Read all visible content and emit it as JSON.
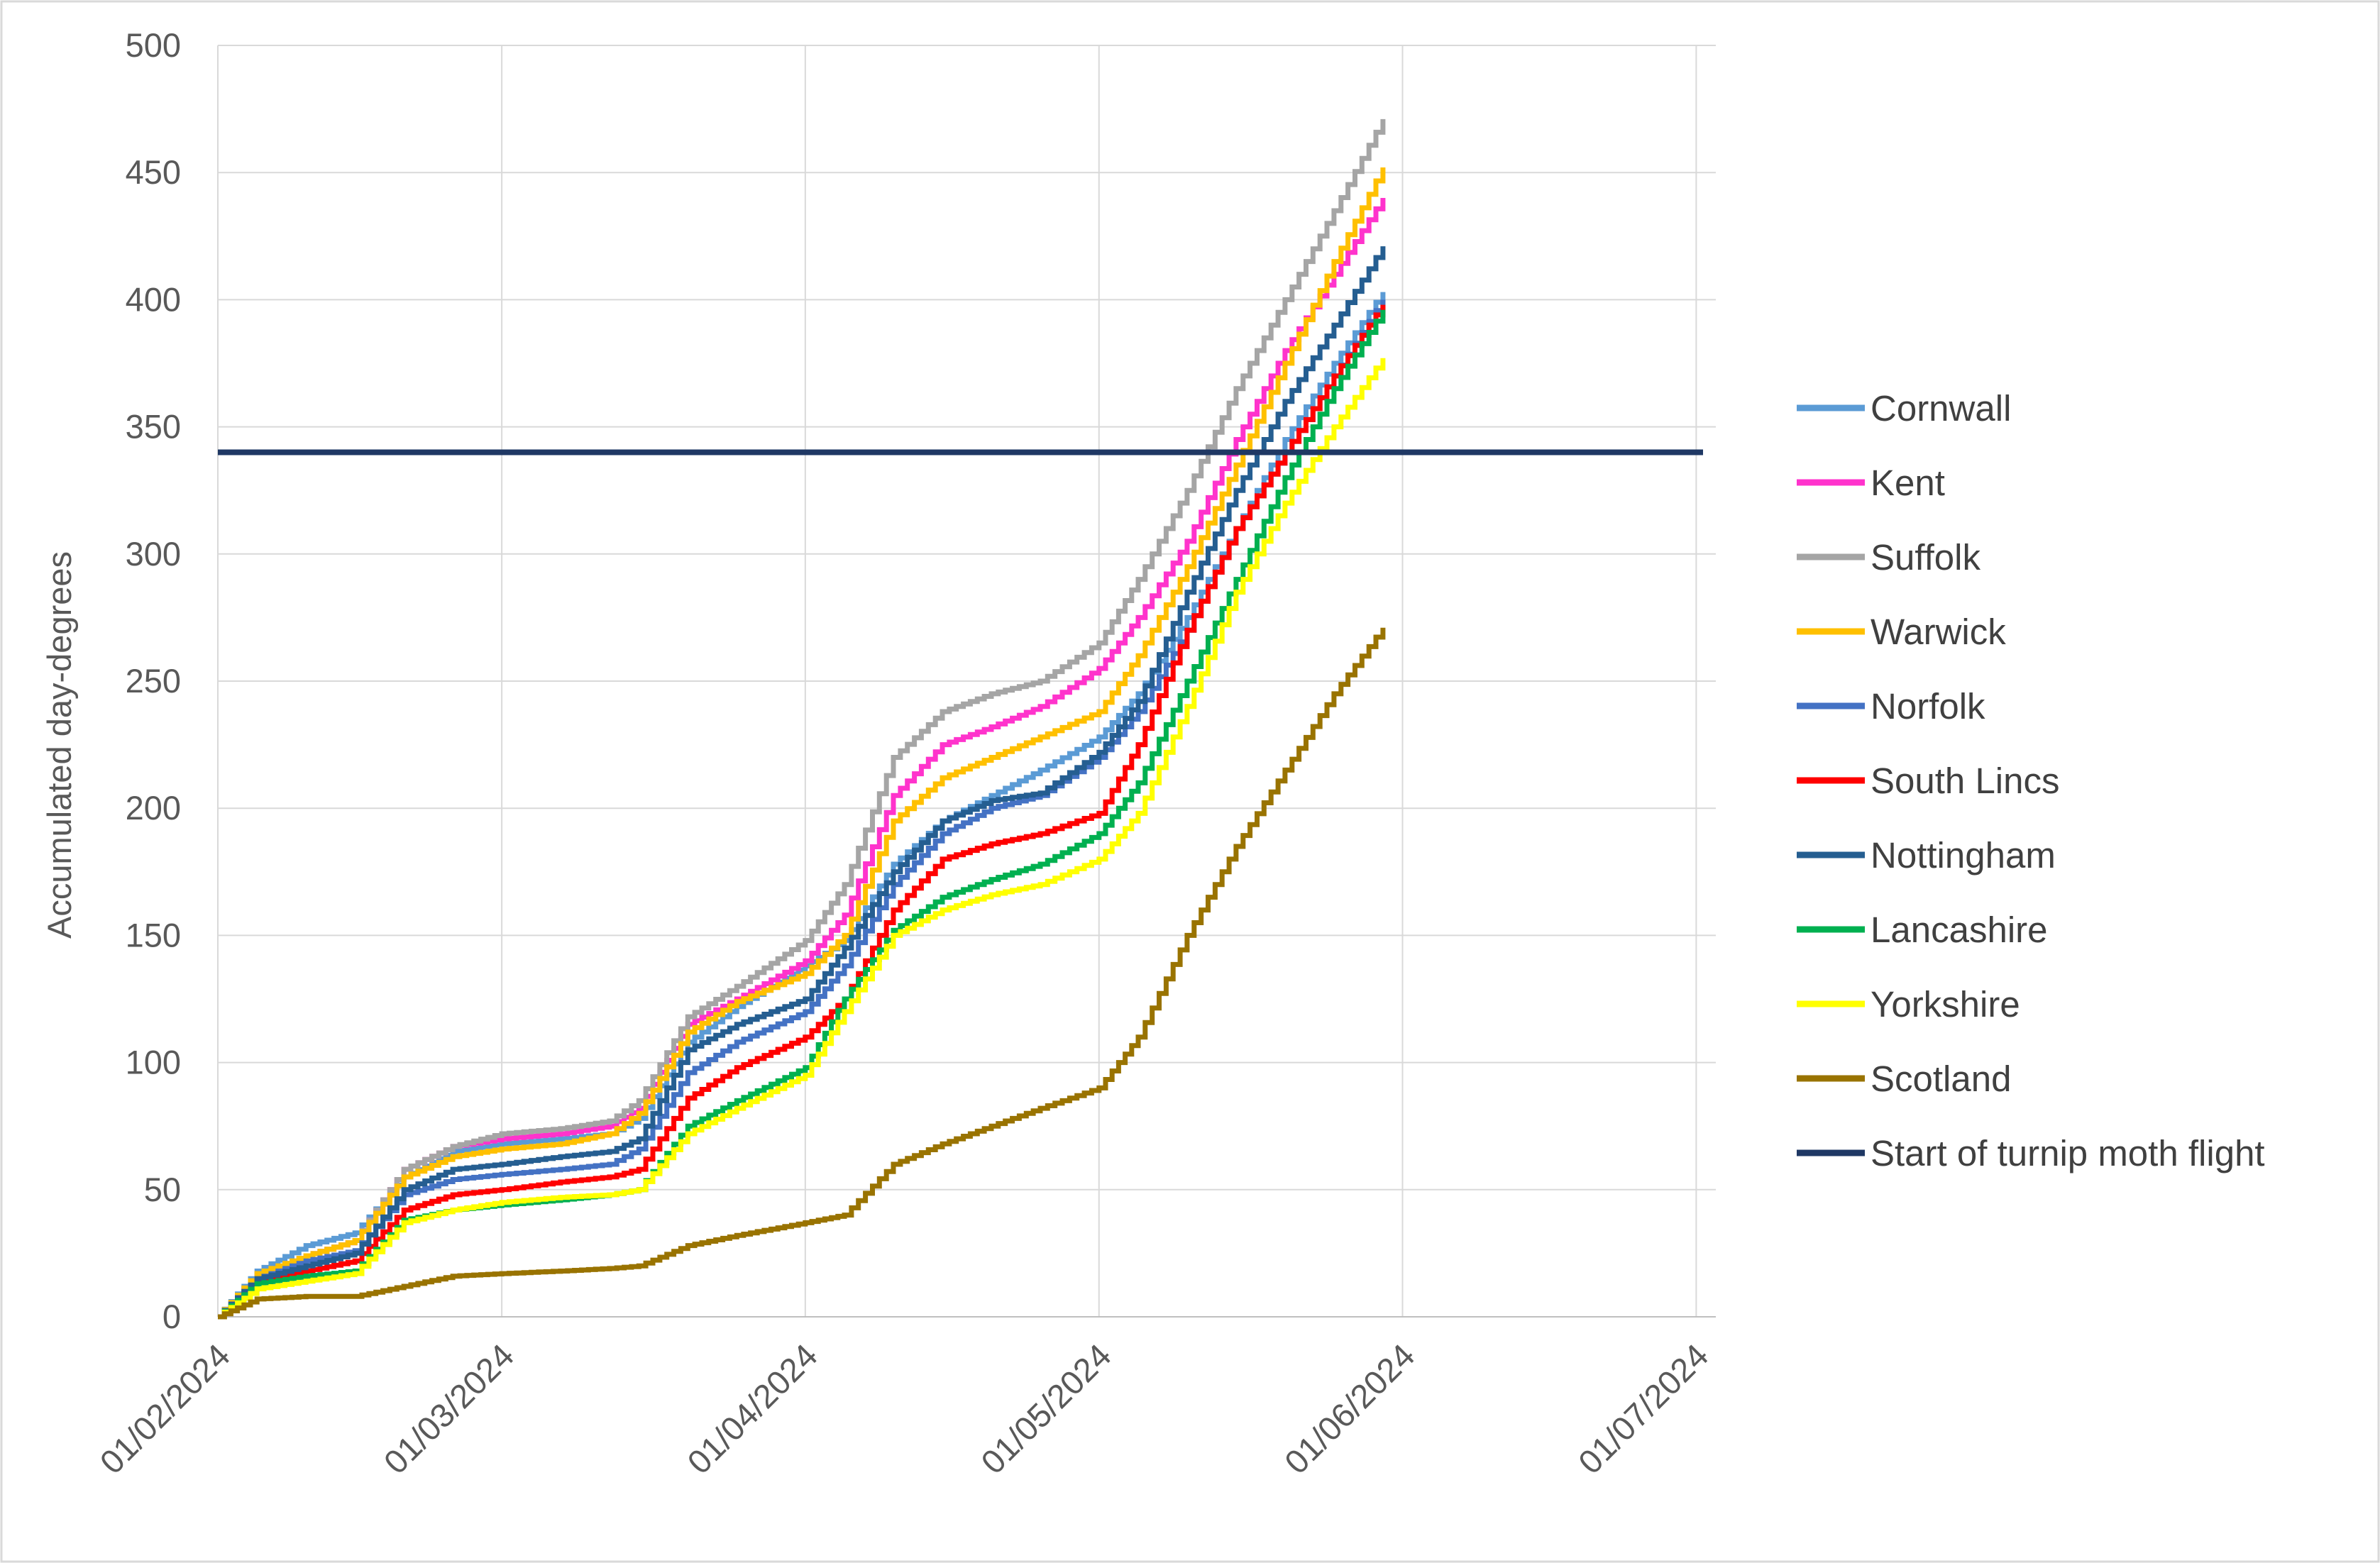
{
  "chart_data": {
    "type": "line",
    "title": "",
    "xlabel": "",
    "ylabel": "Accumulated day-degrees",
    "ylim": [
      0,
      500
    ],
    "yticks": [
      0,
      50,
      100,
      150,
      200,
      250,
      300,
      350,
      400,
      450,
      500
    ],
    "xlim": [
      "2024-02-01",
      "2024-07-03"
    ],
    "xticks": [
      "2024-02-01",
      "2024-03-01",
      "2024-04-01",
      "2024-05-01",
      "2024-06-01",
      "2024-07-01"
    ],
    "xtick_labels": [
      "01/02/2024",
      "01/03/2024",
      "01/04/2024",
      "01/05/2024",
      "01/06/2024",
      "01/07/2024"
    ],
    "grid": true,
    "legend_position": "right",
    "threshold": {
      "name": "Start of turnip moth flight",
      "value": 340,
      "color": "#1F3864"
    },
    "series": [
      {
        "name": "Cornwall",
        "color": "#5B9BD5",
        "points": [
          [
            "2024-02-01",
            0
          ],
          [
            "2024-02-05",
            18
          ],
          [
            "2024-02-10",
            28
          ],
          [
            "2024-02-15",
            33
          ],
          [
            "2024-02-20",
            55
          ],
          [
            "2024-02-25",
            65
          ],
          [
            "2024-03-01",
            68
          ],
          [
            "2024-03-07",
            70
          ],
          [
            "2024-03-12",
            72
          ],
          [
            "2024-03-15",
            78
          ],
          [
            "2024-03-20",
            108
          ],
          [
            "2024-03-25",
            122
          ],
          [
            "2024-04-01",
            138
          ],
          [
            "2024-04-05",
            148
          ],
          [
            "2024-04-10",
            178
          ],
          [
            "2024-04-15",
            195
          ],
          [
            "2024-04-20",
            205
          ],
          [
            "2024-04-25",
            215
          ],
          [
            "2024-05-01",
            228
          ],
          [
            "2024-05-05",
            245
          ],
          [
            "2024-05-10",
            275
          ],
          [
            "2024-05-15",
            310
          ],
          [
            "2024-05-20",
            345
          ],
          [
            "2024-05-25",
            375
          ],
          [
            "2024-05-30",
            403
          ]
        ]
      },
      {
        "name": "Kent",
        "color": "#FF33CC",
        "points": [
          [
            "2024-02-01",
            0
          ],
          [
            "2024-02-05",
            16
          ],
          [
            "2024-02-10",
            24
          ],
          [
            "2024-02-15",
            30
          ],
          [
            "2024-02-20",
            58
          ],
          [
            "2024-02-25",
            67
          ],
          [
            "2024-03-01",
            70
          ],
          [
            "2024-03-07",
            72
          ],
          [
            "2024-03-12",
            75
          ],
          [
            "2024-03-15",
            82
          ],
          [
            "2024-03-20",
            115
          ],
          [
            "2024-03-25",
            125
          ],
          [
            "2024-04-01",
            140
          ],
          [
            "2024-04-05",
            158
          ],
          [
            "2024-04-10",
            205
          ],
          [
            "2024-04-15",
            225
          ],
          [
            "2024-04-20",
            232
          ],
          [
            "2024-04-25",
            240
          ],
          [
            "2024-05-01",
            255
          ],
          [
            "2024-05-05",
            275
          ],
          [
            "2024-05-10",
            305
          ],
          [
            "2024-05-15",
            345
          ],
          [
            "2024-05-20",
            380
          ],
          [
            "2024-05-25",
            410
          ],
          [
            "2024-05-30",
            440
          ]
        ]
      },
      {
        "name": "Suffolk",
        "color": "#A5A5A5",
        "points": [
          [
            "2024-02-01",
            0
          ],
          [
            "2024-02-05",
            17
          ],
          [
            "2024-02-10",
            24
          ],
          [
            "2024-02-15",
            30
          ],
          [
            "2024-02-20",
            58
          ],
          [
            "2024-02-25",
            67
          ],
          [
            "2024-03-01",
            72
          ],
          [
            "2024-03-07",
            74
          ],
          [
            "2024-03-12",
            77
          ],
          [
            "2024-03-15",
            85
          ],
          [
            "2024-03-20",
            118
          ],
          [
            "2024-03-25",
            130
          ],
          [
            "2024-04-01",
            148
          ],
          [
            "2024-04-05",
            170
          ],
          [
            "2024-04-10",
            220
          ],
          [
            "2024-04-15",
            238
          ],
          [
            "2024-04-20",
            245
          ],
          [
            "2024-04-25",
            250
          ],
          [
            "2024-05-01",
            265
          ],
          [
            "2024-05-05",
            290
          ],
          [
            "2024-05-10",
            325
          ],
          [
            "2024-05-15",
            365
          ],
          [
            "2024-05-20",
            400
          ],
          [
            "2024-05-25",
            435
          ],
          [
            "2024-05-30",
            471
          ]
        ]
      },
      {
        "name": "Warwick",
        "color": "#FFC000",
        "points": [
          [
            "2024-02-01",
            0
          ],
          [
            "2024-02-05",
            17
          ],
          [
            "2024-02-10",
            24
          ],
          [
            "2024-02-15",
            30
          ],
          [
            "2024-02-20",
            55
          ],
          [
            "2024-02-25",
            63
          ],
          [
            "2024-03-01",
            66
          ],
          [
            "2024-03-07",
            68
          ],
          [
            "2024-03-12",
            72
          ],
          [
            "2024-03-15",
            80
          ],
          [
            "2024-03-20",
            112
          ],
          [
            "2024-03-25",
            124
          ],
          [
            "2024-04-01",
            135
          ],
          [
            "2024-04-05",
            150
          ],
          [
            "2024-04-10",
            195
          ],
          [
            "2024-04-15",
            212
          ],
          [
            "2024-04-20",
            220
          ],
          [
            "2024-04-25",
            228
          ],
          [
            "2024-05-01",
            238
          ],
          [
            "2024-05-05",
            260
          ],
          [
            "2024-05-10",
            295
          ],
          [
            "2024-05-15",
            335
          ],
          [
            "2024-05-20",
            375
          ],
          [
            "2024-05-25",
            415
          ],
          [
            "2024-05-30",
            452
          ]
        ]
      },
      {
        "name": "Norfolk",
        "color": "#4472C4",
        "points": [
          [
            "2024-02-01",
            0
          ],
          [
            "2024-02-05",
            15
          ],
          [
            "2024-02-10",
            22
          ],
          [
            "2024-02-15",
            26
          ],
          [
            "2024-02-20",
            48
          ],
          [
            "2024-02-25",
            54
          ],
          [
            "2024-03-01",
            56
          ],
          [
            "2024-03-07",
            58
          ],
          [
            "2024-03-12",
            60
          ],
          [
            "2024-03-15",
            66
          ],
          [
            "2024-03-20",
            96
          ],
          [
            "2024-03-25",
            108
          ],
          [
            "2024-04-01",
            120
          ],
          [
            "2024-04-05",
            138
          ],
          [
            "2024-04-10",
            170
          ],
          [
            "2024-04-15",
            190
          ],
          [
            "2024-04-20",
            200
          ],
          [
            "2024-04-25",
            205
          ],
          [
            "2024-05-01",
            220
          ],
          [
            "2024-05-05",
            238
          ],
          [
            "2024-05-10",
            270
          ],
          [
            "2024-05-15",
            310
          ],
          [
            "2024-05-20",
            340
          ],
          [
            "2024-05-25",
            370
          ],
          [
            "2024-05-30",
            400
          ]
        ]
      },
      {
        "name": "South Lincs",
        "color": "#FF0000",
        "points": [
          [
            "2024-02-01",
            0
          ],
          [
            "2024-02-05",
            14
          ],
          [
            "2024-02-10",
            18
          ],
          [
            "2024-02-15",
            22
          ],
          [
            "2024-02-20",
            42
          ],
          [
            "2024-02-25",
            48
          ],
          [
            "2024-03-01",
            50
          ],
          [
            "2024-03-07",
            53
          ],
          [
            "2024-03-12",
            55
          ],
          [
            "2024-03-15",
            58
          ],
          [
            "2024-03-20",
            86
          ],
          [
            "2024-03-25",
            98
          ],
          [
            "2024-04-01",
            110
          ],
          [
            "2024-04-05",
            125
          ],
          [
            "2024-04-10",
            160
          ],
          [
            "2024-04-15",
            180
          ],
          [
            "2024-04-20",
            186
          ],
          [
            "2024-04-25",
            190
          ],
          [
            "2024-05-01",
            198
          ],
          [
            "2024-05-05",
            225
          ],
          [
            "2024-05-10",
            270
          ],
          [
            "2024-05-15",
            310
          ],
          [
            "2024-05-20",
            340
          ],
          [
            "2024-05-25",
            370
          ],
          [
            "2024-05-30",
            398
          ]
        ]
      },
      {
        "name": "Nottingham",
        "color": "#255E91",
        "points": [
          [
            "2024-02-01",
            0
          ],
          [
            "2024-02-05",
            15
          ],
          [
            "2024-02-10",
            20
          ],
          [
            "2024-02-15",
            25
          ],
          [
            "2024-02-20",
            50
          ],
          [
            "2024-02-25",
            58
          ],
          [
            "2024-03-01",
            60
          ],
          [
            "2024-03-07",
            63
          ],
          [
            "2024-03-12",
            65
          ],
          [
            "2024-03-15",
            70
          ],
          [
            "2024-03-20",
            105
          ],
          [
            "2024-03-25",
            115
          ],
          [
            "2024-04-01",
            125
          ],
          [
            "2024-04-05",
            145
          ],
          [
            "2024-04-10",
            175
          ],
          [
            "2024-04-15",
            195
          ],
          [
            "2024-04-20",
            203
          ],
          [
            "2024-04-25",
            206
          ],
          [
            "2024-05-01",
            222
          ],
          [
            "2024-05-05",
            242
          ],
          [
            "2024-05-10",
            285
          ],
          [
            "2024-05-15",
            325
          ],
          [
            "2024-05-20",
            360
          ],
          [
            "2024-05-25",
            390
          ],
          [
            "2024-05-30",
            421
          ]
        ]
      },
      {
        "name": "Lancashire",
        "color": "#00B050",
        "points": [
          [
            "2024-02-01",
            0
          ],
          [
            "2024-02-05",
            13
          ],
          [
            "2024-02-10",
            16
          ],
          [
            "2024-02-15",
            18
          ],
          [
            "2024-02-20",
            38
          ],
          [
            "2024-02-25",
            42
          ],
          [
            "2024-03-01",
            44
          ],
          [
            "2024-03-07",
            46
          ],
          [
            "2024-03-12",
            48
          ],
          [
            "2024-03-15",
            50
          ],
          [
            "2024-03-20",
            75
          ],
          [
            "2024-03-25",
            85
          ],
          [
            "2024-04-01",
            98
          ],
          [
            "2024-04-05",
            125
          ],
          [
            "2024-04-10",
            152
          ],
          [
            "2024-04-15",
            165
          ],
          [
            "2024-04-20",
            172
          ],
          [
            "2024-04-25",
            178
          ],
          [
            "2024-05-01",
            190
          ],
          [
            "2024-05-05",
            210
          ],
          [
            "2024-05-10",
            250
          ],
          [
            "2024-05-15",
            290
          ],
          [
            "2024-05-20",
            330
          ],
          [
            "2024-05-25",
            365
          ],
          [
            "2024-05-30",
            396
          ]
        ]
      },
      {
        "name": "Yorkshire",
        "color": "#FFFF00",
        "points": [
          [
            "2024-02-01",
            0
          ],
          [
            "2024-02-05",
            11
          ],
          [
            "2024-02-10",
            14
          ],
          [
            "2024-02-15",
            17
          ],
          [
            "2024-02-20",
            37
          ],
          [
            "2024-02-25",
            42
          ],
          [
            "2024-03-01",
            45
          ],
          [
            "2024-03-07",
            47
          ],
          [
            "2024-03-12",
            48
          ],
          [
            "2024-03-15",
            50
          ],
          [
            "2024-03-20",
            72
          ],
          [
            "2024-03-25",
            82
          ],
          [
            "2024-04-01",
            95
          ],
          [
            "2024-04-05",
            120
          ],
          [
            "2024-04-10",
            150
          ],
          [
            "2024-04-15",
            160
          ],
          [
            "2024-04-20",
            166
          ],
          [
            "2024-04-25",
            170
          ],
          [
            "2024-05-01",
            180
          ],
          [
            "2024-05-05",
            198
          ],
          [
            "2024-05-10",
            240
          ],
          [
            "2024-05-15",
            285
          ],
          [
            "2024-05-20",
            320
          ],
          [
            "2024-05-25",
            350
          ],
          [
            "2024-05-30",
            377
          ]
        ]
      },
      {
        "name": "Scotland",
        "color": "#997300",
        "points": [
          [
            "2024-02-01",
            0
          ],
          [
            "2024-02-05",
            7
          ],
          [
            "2024-02-10",
            8
          ],
          [
            "2024-02-15",
            8
          ],
          [
            "2024-02-20",
            12
          ],
          [
            "2024-02-25",
            16
          ],
          [
            "2024-03-01",
            17
          ],
          [
            "2024-03-07",
            18
          ],
          [
            "2024-03-12",
            19
          ],
          [
            "2024-03-15",
            20
          ],
          [
            "2024-03-20",
            28
          ],
          [
            "2024-03-25",
            32
          ],
          [
            "2024-04-01",
            37
          ],
          [
            "2024-04-05",
            40
          ],
          [
            "2024-04-10",
            60
          ],
          [
            "2024-04-15",
            68
          ],
          [
            "2024-04-20",
            75
          ],
          [
            "2024-04-25",
            82
          ],
          [
            "2024-05-01",
            90
          ],
          [
            "2024-05-05",
            110
          ],
          [
            "2024-05-10",
            150
          ],
          [
            "2024-05-15",
            185
          ],
          [
            "2024-05-20",
            215
          ],
          [
            "2024-05-25",
            245
          ],
          [
            "2024-05-30",
            271
          ]
        ]
      }
    ]
  }
}
